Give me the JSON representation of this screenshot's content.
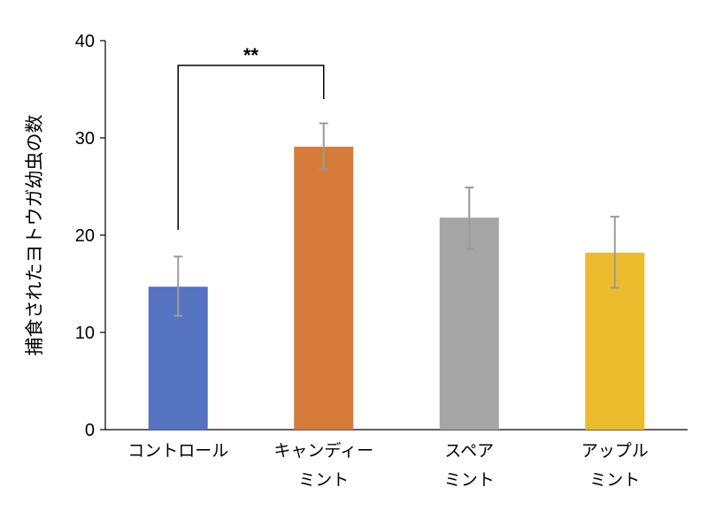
{
  "chart_data": {
    "type": "bar",
    "title": "",
    "xlabel": "",
    "ylabel": "捕食されたヨトウガ幼虫の数",
    "ylim": [
      0,
      40
    ],
    "yticks": [
      0,
      10,
      20,
      30,
      40
    ],
    "grid": false,
    "categories": [
      [
        "コントロール"
      ],
      [
        "キャンディー",
        "ミント"
      ],
      [
        "スペア",
        "ミント"
      ],
      [
        "アップル",
        "ミント"
      ]
    ],
    "values": [
      14.7,
      29.1,
      21.8,
      18.2
    ],
    "errors": [
      [
        11.7,
        17.8
      ],
      [
        26.8,
        31.5
      ],
      [
        18.6,
        24.9
      ],
      [
        14.6,
        21.9
      ]
    ],
    "colors": [
      "#5673c2",
      "#d77b3b",
      "#a5a5a5",
      "#edbb2e"
    ],
    "significance": {
      "between": [
        0,
        1
      ],
      "label": "**"
    }
  }
}
